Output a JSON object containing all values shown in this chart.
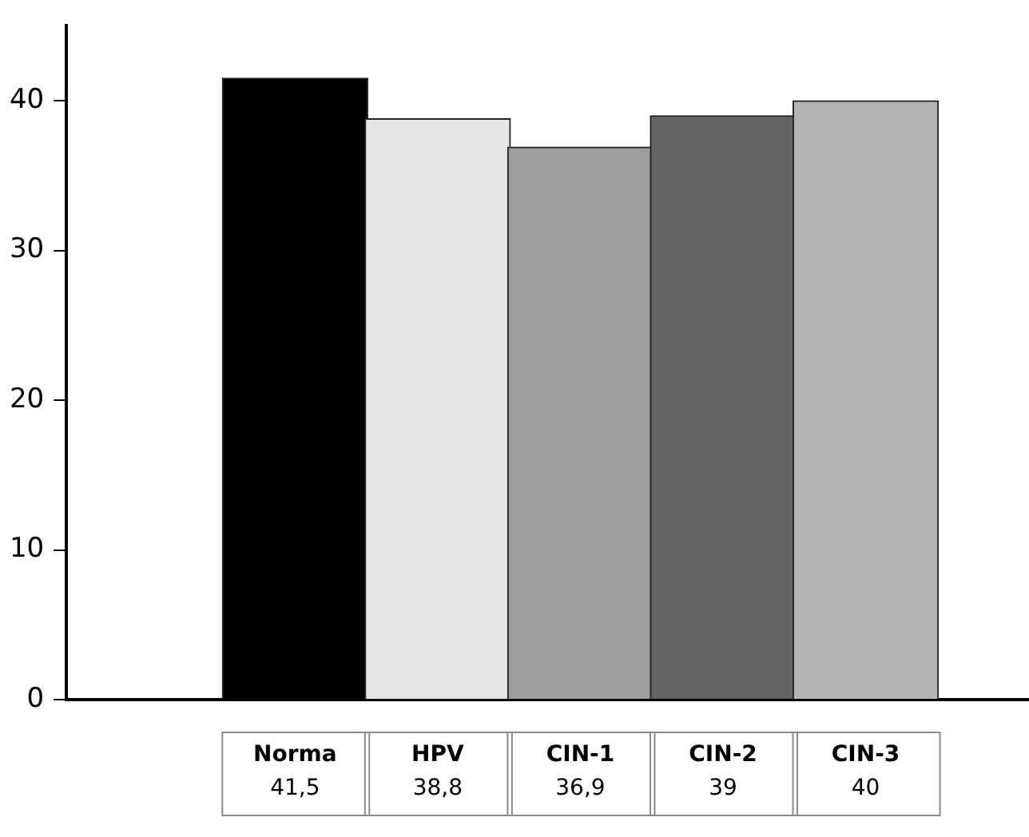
{
  "chart_data": {
    "type": "bar",
    "categories": [
      "Norma",
      "HPV",
      "CIN-1",
      "CIN-2",
      "CIN-3"
    ],
    "values": [
      41.5,
      38.8,
      36.9,
      39,
      40
    ],
    "colors": [
      "#000000",
      "#e6e6e6",
      "#9d9d9d",
      "#646464",
      "#b5b5b5"
    ],
    "value_labels": [
      "41,5",
      "38,8",
      "36,9",
      "39",
      "40"
    ],
    "ylim": [
      0,
      45
    ],
    "yticks": [
      0,
      10,
      20,
      30,
      40
    ]
  }
}
